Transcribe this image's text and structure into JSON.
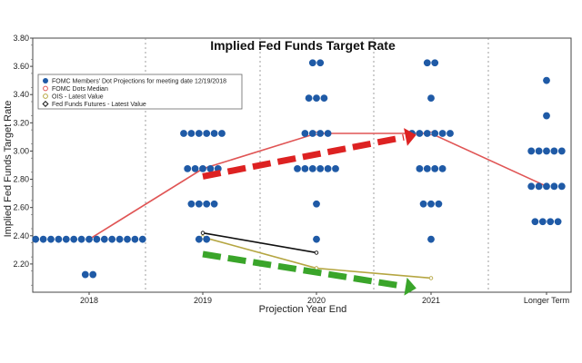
{
  "chart_data": {
    "type": "scatter",
    "title": "Implied Fed Funds Target Rate",
    "xlabel": "Projection Year End",
    "ylabel": "Implied Fed Funds Target Rate",
    "categories": [
      "2018",
      "2019",
      "2020",
      "2021",
      "Longer Term"
    ],
    "ylim": [
      2.0,
      3.8
    ],
    "yticks": [
      "2.20",
      "2.40",
      "2.60",
      "2.80",
      "3.00",
      "3.20",
      "3.40",
      "3.60",
      "3.80"
    ],
    "legend": {
      "position": "top-left",
      "entries": [
        "FOMC Members' Dot Projections for meeting date 12/19/2018",
        "FOMC Dots Median",
        "OIS - Latest Value",
        "Fed Funds Futures - Latest Value"
      ]
    },
    "series": [
      {
        "name": "FOMC Members' Dot Projections for meeting date 12/19/2018",
        "kind": "dots",
        "color": "#1f5aa6",
        "dots": [
          {
            "x": "2018",
            "y": 2.375,
            "count": 15
          },
          {
            "x": "2018",
            "y": 2.125,
            "count": 2
          },
          {
            "x": "2019",
            "y": 3.125,
            "count": 6
          },
          {
            "x": "2019",
            "y": 2.875,
            "count": 5
          },
          {
            "x": "2019",
            "y": 2.625,
            "count": 4
          },
          {
            "x": "2019",
            "y": 2.375,
            "count": 2
          },
          {
            "x": "2020",
            "y": 3.625,
            "count": 2
          },
          {
            "x": "2020",
            "y": 3.375,
            "count": 3
          },
          {
            "x": "2020",
            "y": 3.125,
            "count": 4
          },
          {
            "x": "2020",
            "y": 2.875,
            "count": 6
          },
          {
            "x": "2020",
            "y": 2.625,
            "count": 1
          },
          {
            "x": "2020",
            "y": 2.375,
            "count": 1
          },
          {
            "x": "2021",
            "y": 3.625,
            "count": 2
          },
          {
            "x": "2021",
            "y": 3.375,
            "count": 1
          },
          {
            "x": "2021",
            "y": 3.125,
            "count": 6
          },
          {
            "x": "2021",
            "y": 2.875,
            "count": 4
          },
          {
            "x": "2021",
            "y": 2.625,
            "count": 3
          },
          {
            "x": "2021",
            "y": 2.375,
            "count": 1
          },
          {
            "x": "Longer Term",
            "y": 3.5,
            "count": 1
          },
          {
            "x": "Longer Term",
            "y": 3.25,
            "count": 1
          },
          {
            "x": "Longer Term",
            "y": 3.0,
            "count": 5
          },
          {
            "x": "Longer Term",
            "y": 2.75,
            "count": 5
          },
          {
            "x": "Longer Term",
            "y": 2.5,
            "count": 4
          }
        ]
      },
      {
        "name": "FOMC Dots Median",
        "kind": "line",
        "color": "#e05555",
        "points": [
          {
            "x": "2018",
            "y": 2.375
          },
          {
            "x": "2019",
            "y": 2.875
          },
          {
            "x": "2020",
            "y": 3.125
          },
          {
            "x": "2021",
            "y": 3.125
          },
          {
            "x": "Longer Term",
            "y": 2.75
          }
        ]
      },
      {
        "name": "OIS - Latest Value",
        "kind": "line",
        "color": "#b5a642",
        "points": [
          {
            "x": "2019",
            "y": 2.39
          },
          {
            "x": "2020",
            "y": 2.17
          },
          {
            "x": "2021",
            "y": 2.1
          }
        ]
      },
      {
        "name": "Fed Funds Futures - Latest Value",
        "kind": "line",
        "color": "#111111",
        "points": [
          {
            "x": "2019",
            "y": 2.42
          },
          {
            "x": "2020",
            "y": 2.28
          }
        ]
      }
    ],
    "annotations": [
      {
        "kind": "arrow",
        "color": "#dd2222",
        "from": {
          "x": "2019",
          "y": 2.82
        },
        "to": {
          "x": "2021",
          "y": 3.1
        }
      },
      {
        "kind": "arrow",
        "color": "#3aa52a",
        "from": {
          "x": "2019",
          "y": 2.27
        },
        "to": {
          "x": "2021",
          "y": 2.04
        }
      }
    ]
  }
}
